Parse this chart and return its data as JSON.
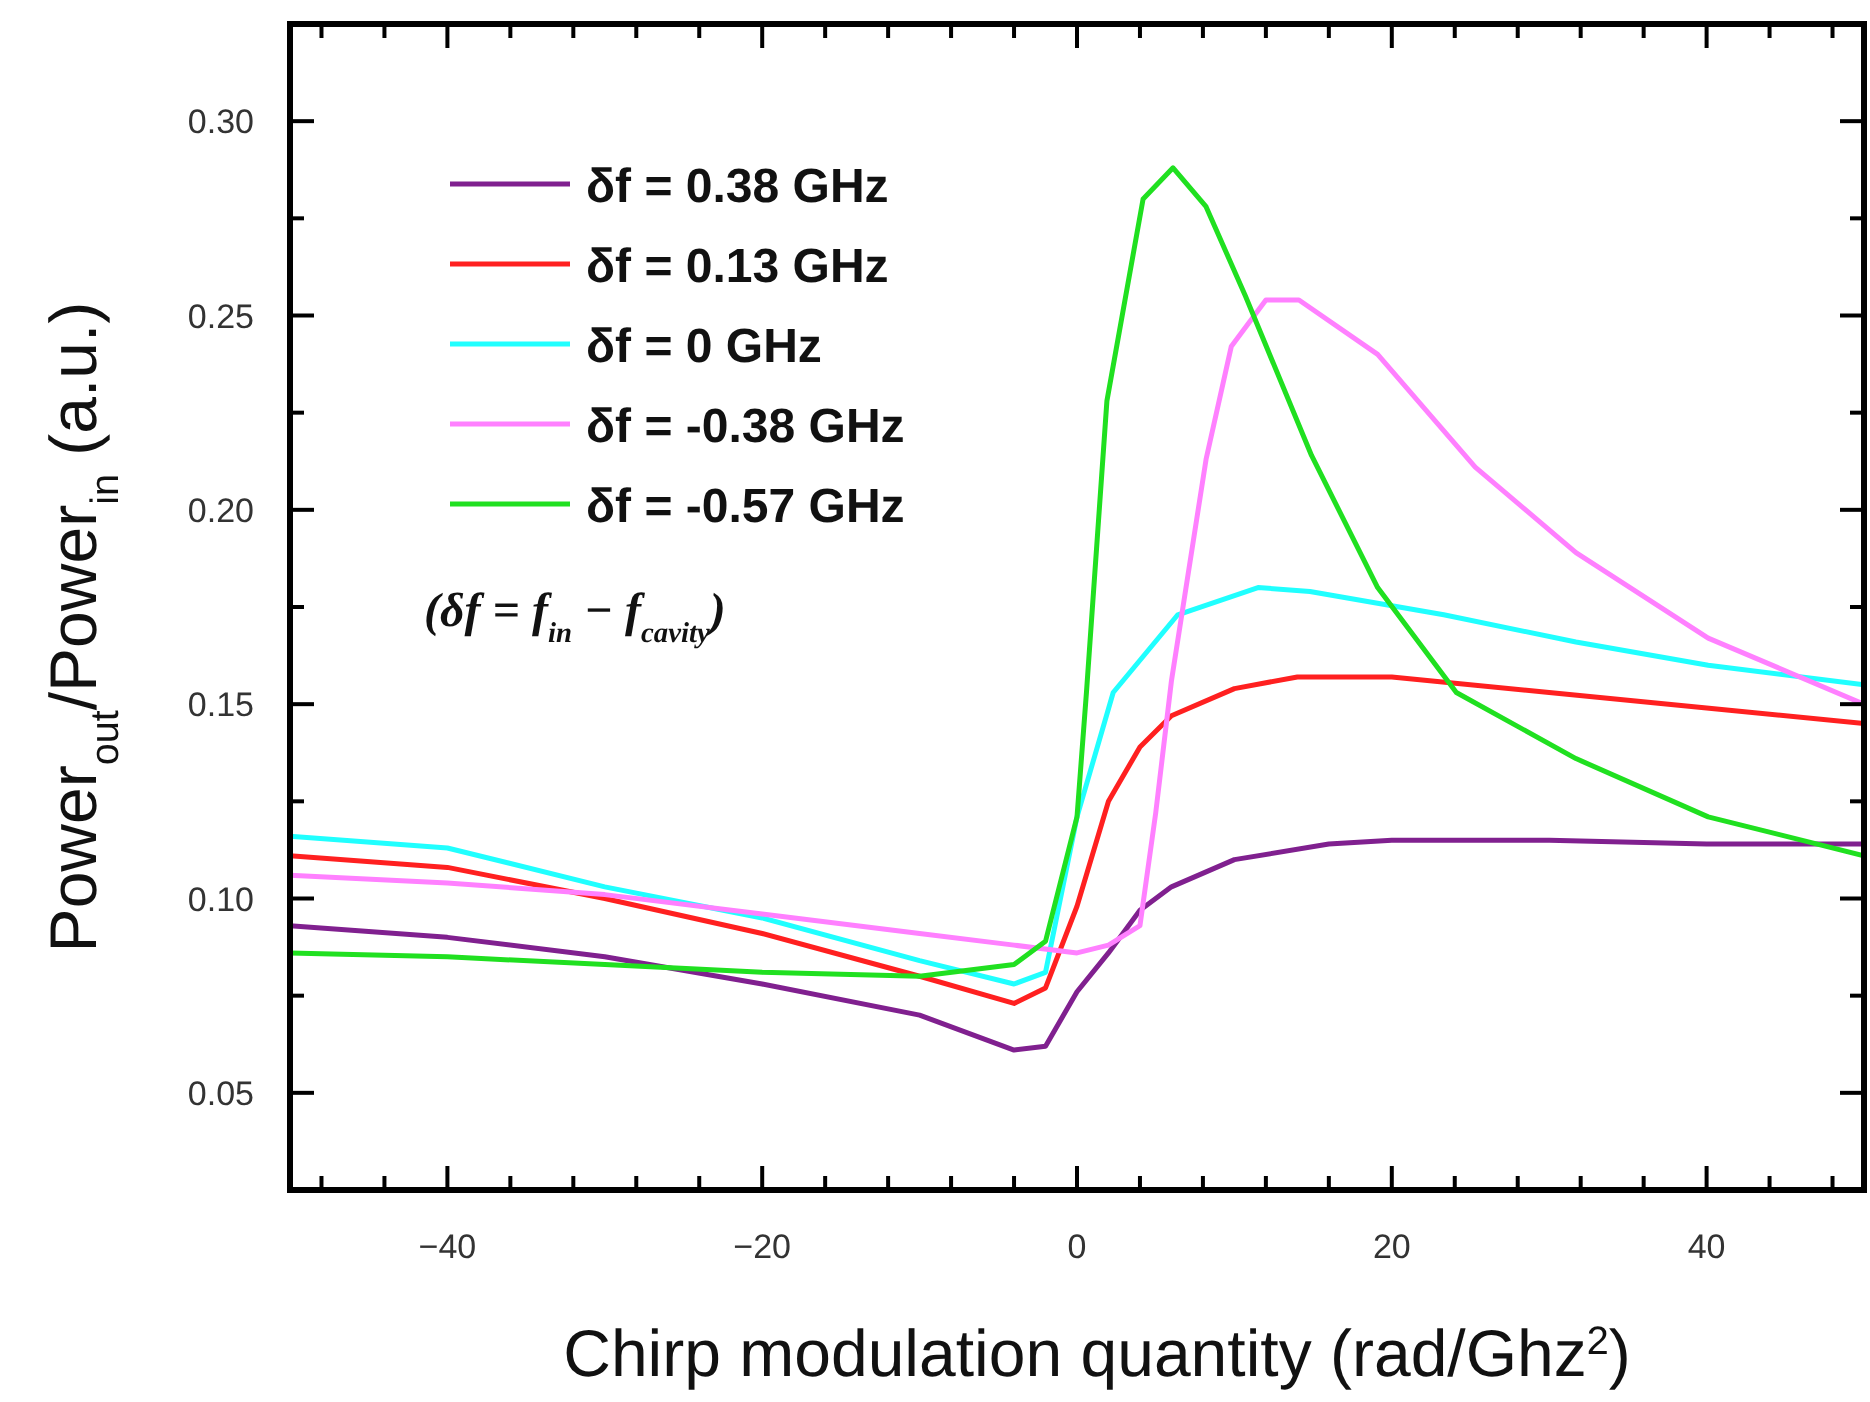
{
  "chart_data": {
    "type": "line",
    "xlabel": "Chirp modulation quantity (rad/Ghz$^{2}$)",
    "ylabel": "Power$_{out}$/Power$_{in}$ (a.u.)",
    "xlim": [
      -50,
      50
    ],
    "ylim": [
      0.025,
      0.325
    ],
    "xticks": [
      {
        "value": -48,
        "label": null
      },
      {
        "value": -44,
        "label": null
      },
      -40,
      {
        "value": -36,
        "label": null
      },
      {
        "value": -32,
        "label": null
      },
      {
        "value": -28,
        "label": null
      },
      {
        "value": -24,
        "label": null
      },
      -20,
      {
        "value": -16,
        "label": null
      },
      {
        "value": -12,
        "label": null
      },
      {
        "value": -8,
        "label": null
      },
      {
        "value": -4,
        "label": null
      },
      0,
      {
        "value": 4,
        "label": null
      },
      {
        "value": 8,
        "label": null
      },
      {
        "value": 12,
        "label": null
      },
      {
        "value": 16,
        "label": null
      },
      20,
      {
        "value": 24,
        "label": null
      },
      {
        "value": 28,
        "label": null
      },
      {
        "value": 32,
        "label": null
      },
      {
        "value": 36,
        "label": null
      },
      40,
      {
        "value": 44,
        "label": null
      },
      {
        "value": 48,
        "label": null
      }
    ],
    "yticks": [
      {
        "value": 0.05,
        "label": "0.05"
      },
      {
        "value": 0.075,
        "label": null
      },
      {
        "value": 0.1,
        "label": "0.10"
      },
      {
        "value": 0.125,
        "label": null
      },
      {
        "value": 0.15,
        "label": "0.15"
      },
      {
        "value": 0.175,
        "label": null
      },
      {
        "value": 0.2,
        "label": "0.20"
      },
      {
        "value": 0.225,
        "label": null
      },
      {
        "value": 0.25,
        "label": "0.25"
      },
      {
        "value": 0.275,
        "label": null
      },
      {
        "value": 0.3,
        "label": "0.30"
      }
    ],
    "grid": false,
    "legend": "top left",
    "line_style": "solid",
    "annotations": [
      "(δf = f$_{in}$ − f$_{cavity}$)"
    ],
    "series": [
      {
        "name": "δf = 0.38 GHz",
        "color": "#80208f",
        "x": [
          -50,
          -40,
          -30,
          -20,
          -10,
          -4,
          -2,
          0,
          2,
          4,
          6,
          10,
          16,
          20,
          30,
          40,
          50
        ],
        "values": [
          0.093,
          0.09,
          0.085,
          0.078,
          0.07,
          0.061,
          0.062,
          0.076,
          0.086,
          0.097,
          0.103,
          0.11,
          0.114,
          0.115,
          0.115,
          0.114,
          0.114
        ]
      },
      {
        "name": "δf = 0.13 GHz",
        "color": "#ff2020",
        "x": [
          -50,
          -40,
          -30,
          -20,
          -10,
          -4,
          -2,
          0,
          2,
          4,
          6,
          10,
          14,
          20,
          30,
          40,
          50
        ],
        "values": [
          0.111,
          0.108,
          0.1,
          0.091,
          0.08,
          0.073,
          0.077,
          0.098,
          0.125,
          0.139,
          0.147,
          0.154,
          0.157,
          0.157,
          0.153,
          0.149,
          0.145
        ]
      },
      {
        "name": "δf = 0 GHz",
        "color": "#20ffff",
        "x": [
          -50,
          -40,
          -30,
          -20,
          -10,
          -4,
          -2,
          0,
          2.3,
          6.4,
          11.5,
          14.8,
          23.3,
          31.7,
          40.1,
          50
        ],
        "values": [
          0.116,
          0.113,
          0.103,
          0.095,
          0.084,
          0.078,
          0.081,
          0.121,
          0.153,
          0.173,
          0.18,
          0.179,
          0.173,
          0.166,
          0.16,
          0.155
        ]
      },
      {
        "name": "δf = -0.38 GHz",
        "color": "#ff80ff",
        "x": [
          -50,
          -40,
          -30,
          -20,
          -10,
          -4,
          0,
          2,
          4,
          5,
          6,
          8.2,
          9.8,
          12,
          14.1,
          19.1,
          25.3,
          31.7,
          40.1,
          50
        ],
        "values": [
          0.106,
          0.104,
          0.101,
          0.096,
          0.091,
          0.088,
          0.086,
          0.088,
          0.093,
          0.122,
          0.156,
          0.213,
          0.242,
          0.254,
          0.254,
          0.24,
          0.211,
          0.189,
          0.167,
          0.15
        ]
      },
      {
        "name": "δf = -0.57 GHz",
        "color": "#20e020",
        "x": [
          -50,
          -40,
          -30,
          -20,
          -10,
          -4,
          -2,
          0,
          0.6,
          1.9,
          4.2,
          6.1,
          8.2,
          10.7,
          14.9,
          19.1,
          24.1,
          31.7,
          40.1,
          50
        ],
        "values": [
          0.086,
          0.085,
          0.083,
          0.081,
          0.08,
          0.083,
          0.089,
          0.121,
          0.153,
          0.228,
          0.28,
          0.288,
          0.278,
          0.255,
          0.214,
          0.18,
          0.153,
          0.136,
          0.121,
          0.111
        ]
      }
    ]
  }
}
